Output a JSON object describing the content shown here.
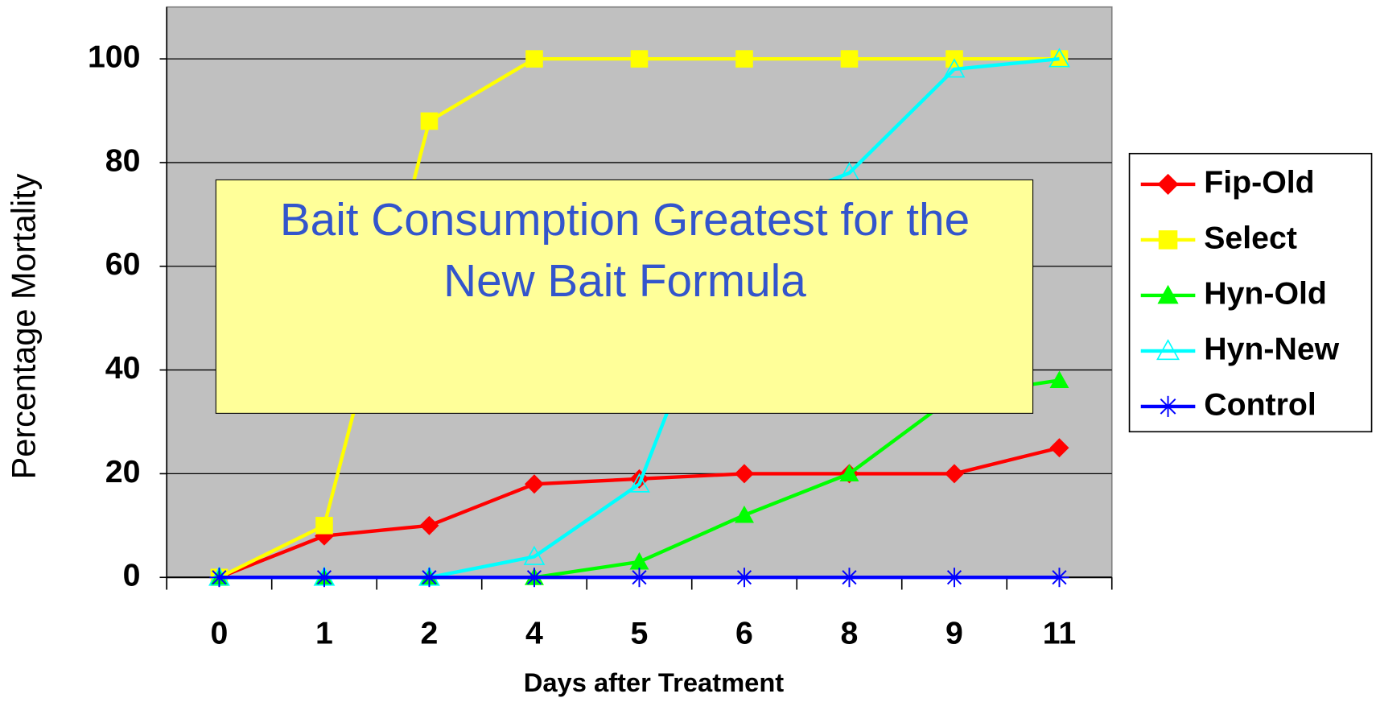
{
  "chart_data": {
    "type": "line",
    "categories": [
      "0",
      "1",
      "2",
      "4",
      "5",
      "6",
      "8",
      "9",
      "11"
    ],
    "series": [
      {
        "name": "Fip-Old",
        "color": "#ff0000",
        "marker": "diamond",
        "values": [
          0,
          8,
          10,
          18,
          19,
          20,
          20,
          20,
          25
        ]
      },
      {
        "name": "Select",
        "color": "#ffff00",
        "marker": "square",
        "values": [
          0,
          10,
          88,
          100,
          100,
          100,
          100,
          100,
          100
        ]
      },
      {
        "name": "Hyn-Old",
        "color": "#00ff00",
        "marker": "triangle",
        "values": [
          0,
          0,
          0,
          0,
          3,
          12,
          20,
          35,
          38
        ]
      },
      {
        "name": "Hyn-New",
        "color": "#00ffff",
        "marker": "open-triangle",
        "values": [
          0,
          0,
          0,
          4,
          18,
          70,
          78,
          98,
          100
        ]
      },
      {
        "name": "Control",
        "color": "#0000ff",
        "marker": "asterisk",
        "values": [
          0,
          0,
          0,
          0,
          0,
          0,
          0,
          0,
          0
        ]
      }
    ],
    "ylim": [
      0,
      110
    ],
    "yticks": [
      0,
      20,
      40,
      60,
      80,
      100
    ],
    "grid": true,
    "x_label": "Days after Treatment",
    "y_label": "Percentage Mortality",
    "annotation": [
      "Bait Consumption Greatest for the",
      "New Bait Formula"
    ],
    "legend": "right"
  }
}
